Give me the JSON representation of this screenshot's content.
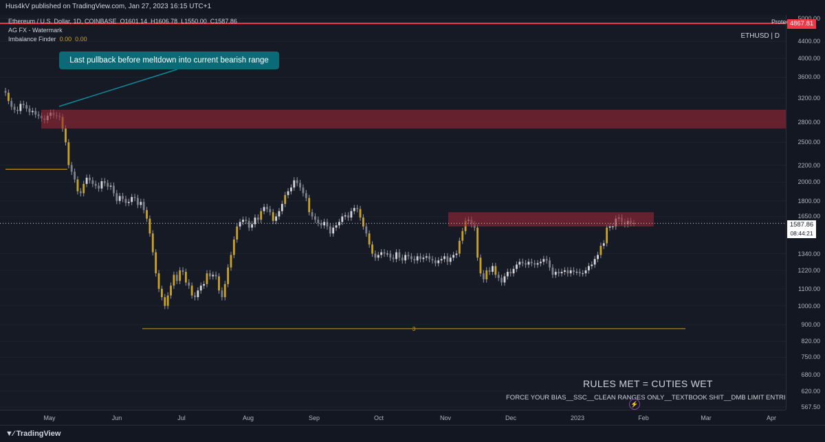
{
  "publisher": "Hus4kV published on TradingView.com, Jan 27, 2023 16:15 UTC+1",
  "legend": {
    "symbol_line_prefix": "Ethereum / U.S. Dollar, 1D, COINBASE",
    "open_label": "O",
    "open": "1601.14",
    "high_label": "H",
    "high": "1606.78",
    "low_label": "L",
    "low": "1550.00",
    "close_label": "C",
    "close": "1587.86",
    "indicator1": "AG FX - Watermark",
    "indicator2_name": "Imbalance Finder",
    "indicator2_val1": "0.00",
    "indicator2_val2": "0.00"
  },
  "annotation": "Last pullback before meltdown into current bearish range",
  "symbol_tag": "ETHUSD | D",
  "rules_text": "RULES MET = CUTIES WET",
  "force_text": "FORCE YOUR BIAS__SSC__CLEAN RANGES ONLY__TEXTBOOK SHIT__DMB LIMIT ENTRIES",
  "range_label": "3",
  "red_line_text": "Protected high",
  "red_line_price": "4867.81",
  "current_price": "1587.86",
  "countdown": "08:44:21",
  "footer_logo": "TradingView",
  "colors": {
    "bg": "#131722",
    "zone": "#962834",
    "red_line": "#f23645",
    "annotation": "#0a6b77",
    "level": "#c9a227"
  },
  "chart_data": {
    "type": "candlestick",
    "title": "Ethereum / U.S. Dollar, 1D, COINBASE",
    "scale": "log",
    "ylim": [
      567.5,
      5000
    ],
    "price_ticks": [
      "5000.00",
      "4400.00",
      "4000.00",
      "3600.00",
      "3200.00",
      "2800.00",
      "2500.00",
      "2200.00",
      "2000.00",
      "1800.00",
      "1650.00",
      "1340.00",
      "1220.00",
      "1100.00",
      "1000.00",
      "900.00",
      "820.00",
      "750.00",
      "680.00",
      "620.00",
      "567.50"
    ],
    "x_ticks": [
      "May",
      "Jun",
      "Jul",
      "Aug",
      "Sep",
      "Oct",
      "Nov",
      "Dec",
      "2023",
      "Feb",
      "Mar",
      "Apr"
    ],
    "closes": [
      3300,
      3150,
      3050,
      3000,
      2980,
      3100,
      3080,
      3020,
      2960,
      2980,
      2920,
      2900,
      2860,
      2830,
      2900,
      2950,
      2910,
      2900,
      2880,
      2700,
      2500,
      2200,
      2120,
      2030,
      1900,
      1880,
      1980,
      2050,
      2020,
      1980,
      1960,
      1930,
      2010,
      1990,
      1950,
      1960,
      1880,
      1800,
      1850,
      1820,
      1780,
      1790,
      1840,
      1830,
      1760,
      1790,
      1710,
      1630,
      1500,
      1350,
      1200,
      1100,
      1050,
      1000,
      1060,
      1120,
      1190,
      1150,
      1220,
      1210,
      1140,
      1120,
      1060,
      1050,
      1090,
      1120,
      1130,
      1200,
      1180,
      1190,
      1180,
      1090,
      1050,
      1130,
      1240,
      1330,
      1450,
      1560,
      1600,
      1620,
      1610,
      1550,
      1580,
      1640,
      1620,
      1700,
      1740,
      1720,
      1690,
      1610,
      1650,
      1700,
      1770,
      1860,
      1900,
      1940,
      2020,
      1990,
      1940,
      1880,
      1830,
      1690,
      1650,
      1620,
      1590,
      1570,
      1600,
      1560,
      1500,
      1550,
      1570,
      1600,
      1650,
      1660,
      1640,
      1700,
      1730,
      1720,
      1640,
      1560,
      1500,
      1410,
      1340,
      1310,
      1330,
      1350,
      1340,
      1340,
      1310,
      1300,
      1350,
      1310,
      1290,
      1330,
      1320,
      1300,
      1290,
      1320,
      1300,
      1310,
      1320,
      1300,
      1290,
      1270,
      1290,
      1300,
      1320,
      1280,
      1310,
      1330,
      1340,
      1440,
      1520,
      1610,
      1620,
      1580,
      1550,
      1310,
      1200,
      1160,
      1220,
      1210,
      1250,
      1190,
      1170,
      1140,
      1180,
      1210,
      1200,
      1230,
      1260,
      1280,
      1270,
      1260,
      1280,
      1270,
      1260,
      1270,
      1280,
      1300,
      1290,
      1240,
      1190,
      1210,
      1200,
      1210,
      1220,
      1200,
      1220,
      1210,
      1210,
      1200,
      1200,
      1220,
      1250,
      1260,
      1300,
      1330,
      1400,
      1420,
      1550,
      1560,
      1560,
      1630,
      1640,
      1600,
      1580,
      1610,
      1590,
      1590
    ],
    "zones": [
      {
        "name": "supply zone",
        "low": 2700,
        "high": 3000
      },
      {
        "name": "current range zone",
        "low": 1560,
        "high": 1690
      }
    ],
    "lines": [
      {
        "name": "red level",
        "price": 4867.81
      },
      {
        "name": "range low",
        "price": 880
      },
      {
        "name": "support level",
        "price": 2150
      }
    ]
  }
}
